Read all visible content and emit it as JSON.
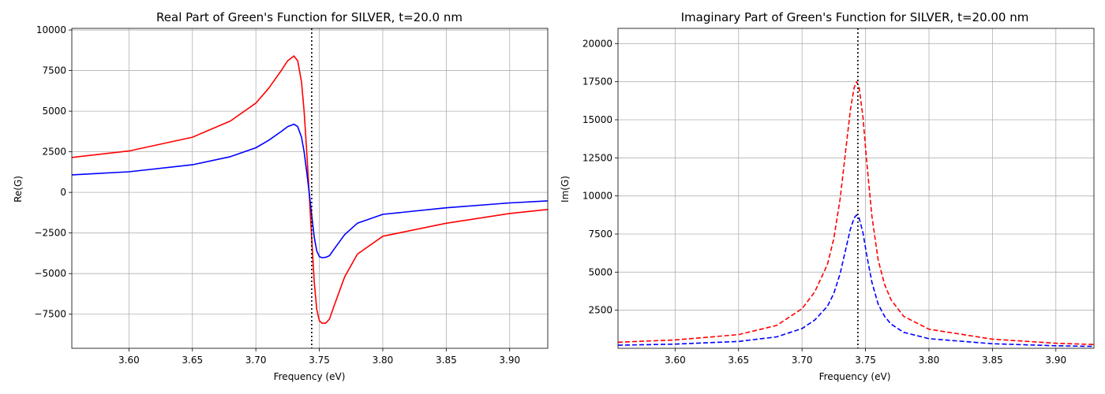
{
  "chart_data": [
    {
      "type": "line",
      "title": "Real Part of Green's Function for SILVER, t=20.0 nm",
      "xlabel": "Frequency (eV)",
      "ylabel": "Re(G)",
      "xlim": [
        3.555,
        3.93
      ],
      "ylim": [
        -9600,
        10100
      ],
      "xticks": [
        "3.60",
        "3.65",
        "3.70",
        "3.75",
        "3.80",
        "3.85",
        "3.90"
      ],
      "yticks": [
        "−7500",
        "−5000",
        "−2500",
        "0",
        "2500",
        "5000",
        "7500",
        "10000"
      ],
      "grid": true,
      "vline": 3.744,
      "series": [
        {
          "color": "#ff0000",
          "style": "solid",
          "x": [
            3.555,
            3.6,
            3.65,
            3.68,
            3.7,
            3.71,
            3.72,
            3.725,
            3.73,
            3.733,
            3.736,
            3.738,
            3.74,
            3.742,
            3.744,
            3.746,
            3.748,
            3.75,
            3.752,
            3.755,
            3.758,
            3.762,
            3.77,
            3.78,
            3.8,
            3.85,
            3.9,
            3.93
          ],
          "y": [
            2150,
            2550,
            3400,
            4400,
            5500,
            6400,
            7500,
            8100,
            8400,
            8100,
            6800,
            5000,
            2600,
            0,
            -2800,
            -5500,
            -7200,
            -7900,
            -8050,
            -8050,
            -7800,
            -6900,
            -5200,
            -3800,
            -2700,
            -1900,
            -1300,
            -1050
          ]
        },
        {
          "color": "#0000ff",
          "style": "solid",
          "x": [
            3.555,
            3.6,
            3.65,
            3.68,
            3.7,
            3.71,
            3.72,
            3.725,
            3.73,
            3.733,
            3.736,
            3.738,
            3.74,
            3.742,
            3.744,
            3.746,
            3.748,
            3.75,
            3.752,
            3.755,
            3.758,
            3.762,
            3.77,
            3.78,
            3.8,
            3.85,
            3.9,
            3.93
          ],
          "y": [
            1080,
            1270,
            1700,
            2200,
            2750,
            3200,
            3750,
            4050,
            4200,
            4050,
            3400,
            2500,
            1300,
            0,
            -1400,
            -2750,
            -3600,
            -3950,
            -4020,
            -4000,
            -3900,
            -3450,
            -2600,
            -1900,
            -1350,
            -950,
            -650,
            -520
          ]
        }
      ]
    },
    {
      "type": "line",
      "title": "Imaginary Part of Green's Function for SILVER, t=20.00 nm",
      "xlabel": "Frequency (eV)",
      "ylabel": "Im(G)",
      "xlim": [
        3.555,
        3.93
      ],
      "ylim": [
        0,
        21000
      ],
      "xticks": [
        "3.60",
        "3.65",
        "3.70",
        "3.75",
        "3.80",
        "3.85",
        "3.90"
      ],
      "yticks": [
        "2500",
        "5000",
        "7500",
        "10000",
        "12500",
        "15000",
        "17500",
        "20000"
      ],
      "grid": true,
      "vline": 3.744,
      "series": [
        {
          "color": "#ff0000",
          "style": "dashed",
          "x": [
            3.555,
            3.6,
            3.65,
            3.68,
            3.7,
            3.71,
            3.72,
            3.725,
            3.73,
            3.735,
            3.738,
            3.741,
            3.743,
            3.745,
            3.748,
            3.751,
            3.755,
            3.76,
            3.765,
            3.77,
            3.78,
            3.8,
            3.85,
            3.9,
            3.93
          ],
          "y": [
            400,
            550,
            900,
            1500,
            2600,
            3700,
            5500,
            7200,
            9800,
            13400,
            15600,
            17100,
            17500,
            17100,
            15200,
            12200,
            8700,
            5800,
            4200,
            3200,
            2100,
            1250,
            600,
            330,
            250
          ]
        },
        {
          "color": "#0000ff",
          "style": "dashed",
          "x": [
            3.555,
            3.6,
            3.65,
            3.68,
            3.7,
            3.71,
            3.72,
            3.725,
            3.73,
            3.735,
            3.738,
            3.741,
            3.743,
            3.745,
            3.748,
            3.751,
            3.755,
            3.76,
            3.765,
            3.77,
            3.78,
            3.8,
            3.85,
            3.9,
            3.93
          ],
          "y": [
            200,
            275,
            450,
            750,
            1300,
            1850,
            2750,
            3600,
            4900,
            6700,
            7800,
            8550,
            8750,
            8550,
            7600,
            6100,
            4350,
            2900,
            2100,
            1600,
            1050,
            630,
            300,
            165,
            125
          ]
        }
      ]
    }
  ]
}
